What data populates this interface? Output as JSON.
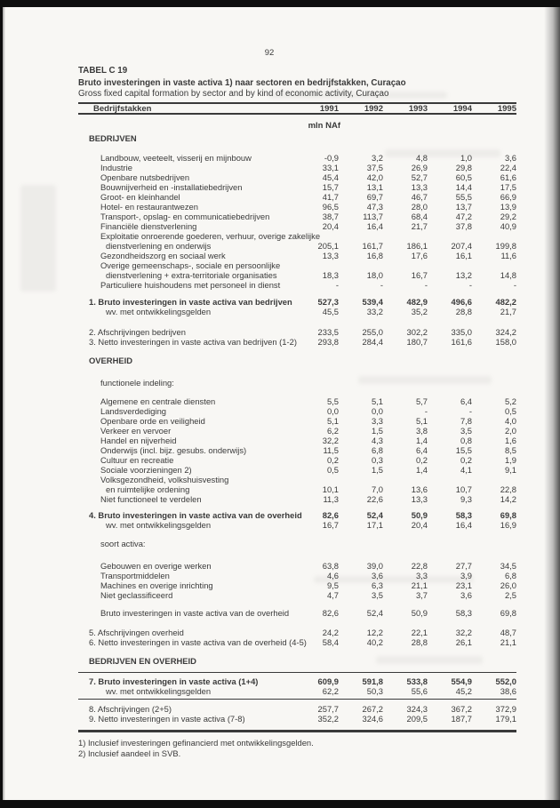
{
  "page": {
    "page_number": "92",
    "table_label": "TABEL C 19",
    "title_nl": "Bruto investeringen in vaste activa 1) naar sectoren en bedrijfstakken, Curaçao",
    "title_en": "Gross fixed capital formation by sector and by kind of economic activity, Curaçao",
    "unit": "mln NAf",
    "footnotes": {
      "line1": "1) Inclusief investeringen gefinancierd met ontwikkelingsgelden.",
      "line2": "2) Inclusief aandeel in SVB."
    }
  },
  "table": {
    "header": {
      "label_col": "Bedrijfstakken",
      "years": [
        "1991",
        "1992",
        "1993",
        "1994",
        "1995"
      ]
    },
    "rows": [
      {
        "t": "gap",
        "h": 3
      },
      {
        "t": "section",
        "label": "BEDRIJVEN"
      },
      {
        "t": "gap",
        "h": 11
      },
      {
        "t": "item",
        "label": "Landbouw, veeteelt, visserij en mijnbouw",
        "v": [
          "-0,9",
          "3,2",
          "4,8",
          "1,0",
          "3,6"
        ]
      },
      {
        "t": "item",
        "label": "Industrie",
        "v": [
          "33,1",
          "37,5",
          "26,9",
          "29,8",
          "22,4"
        ]
      },
      {
        "t": "item",
        "label": "Openbare nutsbedrijven",
        "v": [
          "45,4",
          "42,0",
          "52,7",
          "60,5",
          "61,6"
        ]
      },
      {
        "t": "item",
        "label": "Bouwnijverheid en -installatiebedrijven",
        "v": [
          "15,7",
          "13,1",
          "13,3",
          "14,4",
          "17,5"
        ]
      },
      {
        "t": "item",
        "label": "Groot- en kleinhandel",
        "v": [
          "41,7",
          "69,7",
          "46,7",
          "55,5",
          "66,9"
        ]
      },
      {
        "t": "item",
        "label": "Hotel- en restaurantwezen",
        "v": [
          "96,5",
          "47,3",
          "28,0",
          "13,7",
          "13,9"
        ]
      },
      {
        "t": "item",
        "label": "Transport-, opslag- en communicatiebedrijven",
        "v": [
          "38,7",
          "113,7",
          "68,4",
          "47,2",
          "29,2"
        ]
      },
      {
        "t": "item",
        "label": "Financiële dienstverlening",
        "v": [
          "20,4",
          "16,4",
          "21,7",
          "37,8",
          "40,9"
        ]
      },
      {
        "t": "item",
        "label": "Exploitatie onroerende goederen, verhuur, overige zakelijke"
      },
      {
        "t": "cont",
        "label": "dienstverlening en onderwijs",
        "v": [
          "205,1",
          "161,7",
          "186,1",
          "207,4",
          "199,8"
        ]
      },
      {
        "t": "item",
        "label": "Gezondheidszorg en sociaal werk",
        "v": [
          "13,3",
          "16,8",
          "17,6",
          "16,1",
          "11,6"
        ]
      },
      {
        "t": "item",
        "label": "Overige gemeenschaps-, sociale en persoonlijke"
      },
      {
        "t": "cont",
        "label": "dienstverlening + extra-territoriale organisaties",
        "v": [
          "18,3",
          "18,0",
          "16,7",
          "13,2",
          "14,8"
        ]
      },
      {
        "t": "item",
        "label": "Particuliere huishoudens met personeel in dienst",
        "v": [
          "-",
          "-",
          "-",
          "-",
          "-"
        ]
      },
      {
        "t": "gap",
        "h": 8
      },
      {
        "t": "num",
        "bold": true,
        "label": "1. Bruto investeringen in vaste activa van bedrijven",
        "v": [
          "527,3",
          "539,4",
          "482,9",
          "496,6",
          "482,2"
        ]
      },
      {
        "t": "sub",
        "label": "wv. met ontwikkelingsgelden",
        "v": [
          "45,5",
          "33,2",
          "35,2",
          "28,8",
          "21,7"
        ]
      },
      {
        "t": "gap",
        "h": 12
      },
      {
        "t": "num",
        "label": "2. Afschrijvingen bedrijven",
        "v": [
          "233,5",
          "255,0",
          "302,2",
          "335,0",
          "324,2"
        ]
      },
      {
        "t": "num",
        "label": "3. Netto investeringen in vaste activa van bedrijven (1-2)",
        "v": [
          "293,8",
          "284,4",
          "180,7",
          "161,6",
          "158,0"
        ]
      },
      {
        "t": "gap",
        "h": 10
      },
      {
        "t": "section",
        "label": "OVERHEID"
      },
      {
        "t": "gap",
        "h": 14
      },
      {
        "t": "label",
        "label": "functionele indeling:"
      },
      {
        "t": "gap",
        "h": 10
      },
      {
        "t": "item",
        "label": "Algemene en centrale diensten",
        "v": [
          "5,5",
          "5,1",
          "5,7",
          "6,4",
          "5,2"
        ]
      },
      {
        "t": "item",
        "label": "Landsverdediging",
        "v": [
          "0,0",
          "0,0",
          "-",
          "-",
          "0,5"
        ]
      },
      {
        "t": "item",
        "label": "Openbare orde en veiligheid",
        "v": [
          "5,1",
          "3,3",
          "5,1",
          "7,8",
          "4,0"
        ]
      },
      {
        "t": "item",
        "label": "Verkeer en vervoer",
        "v": [
          "6,2",
          "1,5",
          "3,8",
          "3,5",
          "2,0"
        ]
      },
      {
        "t": "item",
        "label": "Handel en nijverheid",
        "v": [
          "32,2",
          "4,3",
          "1,4",
          "0,8",
          "1,6"
        ]
      },
      {
        "t": "item",
        "label": "Onderwijs (incl. bijz. gesubs. onderwijs)",
        "v": [
          "11,5",
          "6,8",
          "6,4",
          "15,5",
          "8,5"
        ]
      },
      {
        "t": "item",
        "label": "Cultuur en recreatie",
        "v": [
          "0,2",
          "0,3",
          "0,2",
          "0,2",
          "1,9"
        ]
      },
      {
        "t": "item",
        "label": "Sociale voorzieningen 2)",
        "v": [
          "0,5",
          "1,5",
          "1,4",
          "4,1",
          "9,1"
        ]
      },
      {
        "t": "item",
        "label": "Volksgezondheid, volkshuisvesting"
      },
      {
        "t": "cont",
        "label": "en ruimtelijke ordening",
        "v": [
          "10,1",
          "7,0",
          "13,6",
          "10,7",
          "22,8"
        ]
      },
      {
        "t": "item",
        "label": "Niet functioneel te verdelen",
        "v": [
          "11,3",
          "22,6",
          "13,3",
          "9,3",
          "14,2"
        ]
      },
      {
        "t": "gap",
        "h": 7
      },
      {
        "t": "num",
        "bold": true,
        "label": "4. Bruto investeringen in vaste activa van de overheid",
        "v": [
          "82,6",
          "52,4",
          "50,9",
          "58,3",
          "69,8"
        ]
      },
      {
        "t": "sub",
        "label": "wv. met ontwikkelingsgelden",
        "v": [
          "16,7",
          "17,1",
          "20,4",
          "16,4",
          "16,9"
        ]
      },
      {
        "t": "gap",
        "h": 10
      },
      {
        "t": "label",
        "label": "soort activa:"
      },
      {
        "t": "gap",
        "h": 14
      },
      {
        "t": "item",
        "label": "Gebouwen en overige werken",
        "v": [
          "63,8",
          "39,0",
          "22,8",
          "27,7",
          "34,5"
        ]
      },
      {
        "t": "item",
        "label": "Transportmiddelen",
        "v": [
          "4,6",
          "3,6",
          "3,3",
          "3,9",
          "6,8"
        ]
      },
      {
        "t": "item",
        "label": "Machines en overige inrichting",
        "v": [
          "9,5",
          "6,3",
          "21,1",
          "23,1",
          "26,0"
        ]
      },
      {
        "t": "item",
        "label": "Niet geclassificeerd",
        "v": [
          "4,7",
          "3,5",
          "3,7",
          "3,6",
          "2,5"
        ]
      },
      {
        "t": "gap",
        "h": 9
      },
      {
        "t": "item",
        "label": "Bruto investeringen in vaste activa van de overheid",
        "v": [
          "82,6",
          "52,4",
          "50,9",
          "58,3",
          "69,8"
        ]
      },
      {
        "t": "gap",
        "h": 11
      },
      {
        "t": "num",
        "label": "5. Afschrijvingen overheid",
        "v": [
          "24,2",
          "12,2",
          "22,1",
          "32,2",
          "48,7"
        ]
      },
      {
        "t": "num",
        "label": "6. Netto investeringen in vaste activa van de overheid (4-5)",
        "v": [
          "58,4",
          "40,2",
          "28,8",
          "26,1",
          "21,1"
        ]
      },
      {
        "t": "gap",
        "h": 10
      },
      {
        "t": "section",
        "label": "BEDRIJVEN EN OVERHEID"
      },
      {
        "t": "gap",
        "h": 7
      },
      {
        "t": "rule"
      },
      {
        "t": "gap",
        "h": 4
      },
      {
        "t": "num",
        "bold": true,
        "label": "7. Bruto investeringen in vaste activa (1+4)",
        "v": [
          "609,9",
          "591,8",
          "533,8",
          "554,9",
          "552,0"
        ]
      },
      {
        "t": "sub",
        "label": "wv. met ontwikkelingsgelden",
        "v": [
          "62,2",
          "50,3",
          "55,6",
          "45,2",
          "38,6"
        ]
      },
      {
        "t": "gap",
        "h": 3
      },
      {
        "t": "rule"
      },
      {
        "t": "gap",
        "h": 5
      },
      {
        "t": "num",
        "label": "8. Afschrijvingen (2+5)",
        "v": [
          "257,7",
          "267,2",
          "324,3",
          "367,2",
          "372,9"
        ]
      },
      {
        "t": "num",
        "label": "9. Netto investeringen in vaste activa (7-8)",
        "v": [
          "352,2",
          "324,6",
          "209,5",
          "187,7",
          "179,1"
        ]
      },
      {
        "t": "gap",
        "h": 7
      },
      {
        "t": "rule",
        "thick": true
      }
    ]
  }
}
